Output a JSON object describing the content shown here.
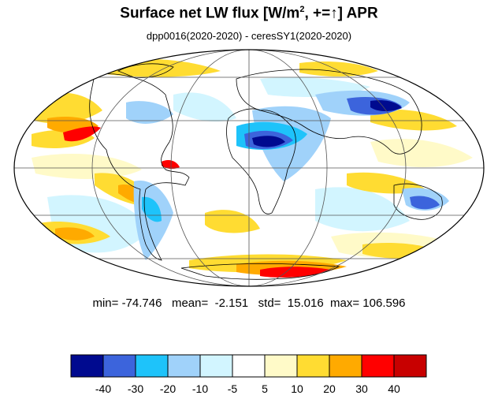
{
  "title": {
    "main": "Surface net LW flux [W/m",
    "sup": "2",
    "rest": ", +=↑]  APR"
  },
  "subtitle": "dpp0016(2020-2020) - ceresSY1(2020-2020)",
  "stats": {
    "min_label": "min=",
    "min": "-74.746",
    "mean_label": "mean=",
    "mean": "-2.151",
    "std_label": "std=",
    "std": "15.016",
    "max_label": "max=",
    "max": "106.596"
  },
  "colorbar": {
    "colors": [
      "#000a8f",
      "#3c64dc",
      "#1ec3fa",
      "#a0d2fa",
      "#d2f5ff",
      "#ffffff",
      "#fffac8",
      "#ffdc32",
      "#ffaa00",
      "#ff0000",
      "#c80000"
    ],
    "labels": [
      "-40",
      "-30",
      "-20",
      "-10",
      "-5",
      "5",
      "10",
      "20",
      "30",
      "40"
    ]
  },
  "map": {
    "projection": "mollweide",
    "land_outline_color": "#000000",
    "grid_color": "#555555"
  }
}
